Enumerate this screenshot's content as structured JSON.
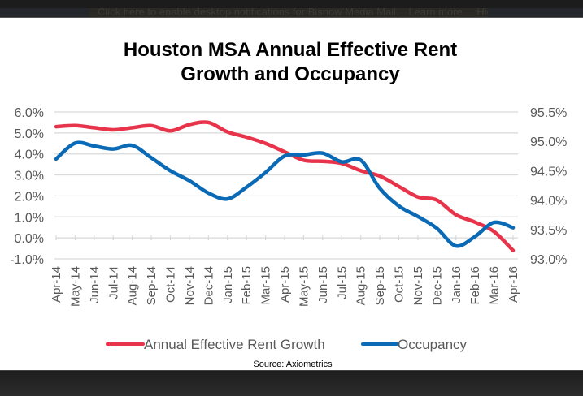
{
  "notification": {
    "text": "Click here to enable desktop notifications for Bisnow Media Mail.",
    "learn_more": "Learn more",
    "hide": "Hide"
  },
  "colors": {
    "rent_growth": "#e8344a",
    "occupancy": "#0b6ab5",
    "grid": "#d9d9d9",
    "axis_text": "#595959"
  },
  "chart_data": {
    "type": "line",
    "title_lines": [
      "Houston MSA Annual Effective Rent",
      "Growth and Occupancy"
    ],
    "source": "Source: Axiometrics",
    "x": [
      "Apr-14",
      "May-14",
      "Jun-14",
      "Jul-14",
      "Aug-14",
      "Sep-14",
      "Oct-14",
      "Nov-14",
      "Dec-14",
      "Jan-15",
      "Feb-15",
      "Mar-15",
      "Apr-15",
      "May-15",
      "Jun-15",
      "Jul-15",
      "Aug-15",
      "Sep-15",
      "Oct-15",
      "Nov-15",
      "Dec-15",
      "Jan-16",
      "Feb-16",
      "Mar-16",
      "Apr-16"
    ],
    "y_left": {
      "ticks": [
        "6.0%",
        "5.0%",
        "4.0%",
        "3.0%",
        "2.0%",
        "1.0%",
        "0.0%",
        "-1.0%"
      ],
      "range": [
        -1.0,
        6.0
      ]
    },
    "y_right": {
      "ticks": [
        "95.5%",
        "95.0%",
        "94.5%",
        "94.0%",
        "93.5%",
        "93.0%"
      ],
      "range": [
        93.0,
        95.5
      ]
    },
    "grid": true,
    "legend_position": "bottom",
    "series": [
      {
        "name": "Annual Effective Rent Growth",
        "axis": "left",
        "values": [
          5.3,
          5.35,
          5.25,
          5.15,
          5.25,
          5.35,
          5.1,
          5.4,
          5.5,
          5.05,
          4.8,
          4.5,
          4.1,
          3.7,
          3.65,
          3.55,
          3.2,
          2.95,
          2.45,
          1.95,
          1.8,
          1.1,
          0.75,
          0.3,
          -0.6
        ]
      },
      {
        "name": "Occupancy",
        "axis": "right",
        "values": [
          94.7,
          94.97,
          94.92,
          94.87,
          94.93,
          94.72,
          94.5,
          94.33,
          94.12,
          94.02,
          94.22,
          94.47,
          94.75,
          94.77,
          94.8,
          94.65,
          94.68,
          94.2,
          93.9,
          93.72,
          93.52,
          93.22,
          93.38,
          93.62,
          93.53
        ]
      }
    ]
  }
}
